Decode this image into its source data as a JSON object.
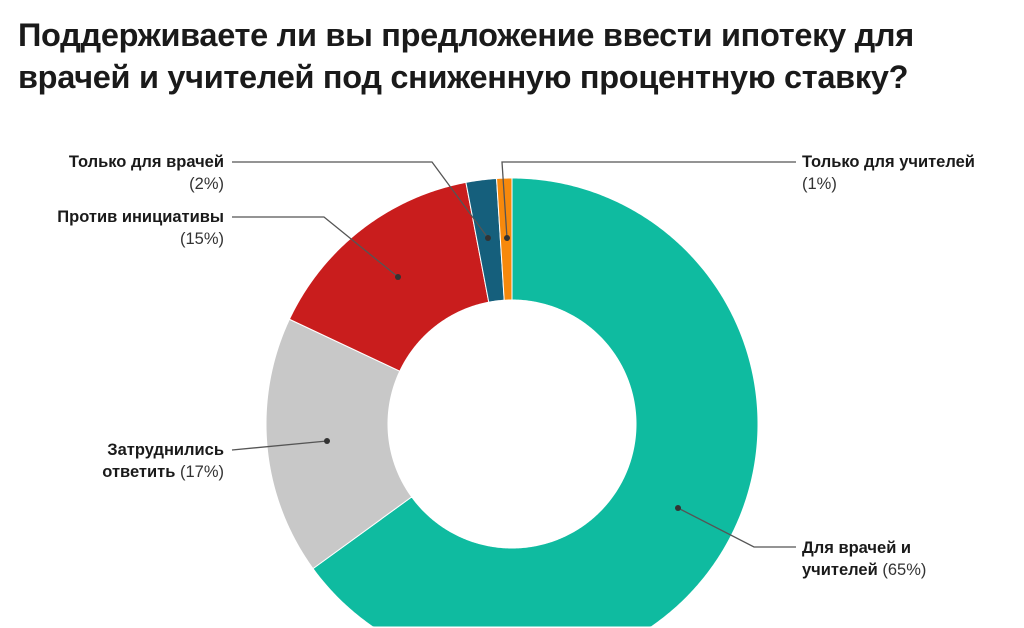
{
  "chart_data": {
    "type": "pie",
    "donut": true,
    "title": "Поддерживаете ли вы предложение ввести ипотеку для врачей и учителей под сниженную процентную ставку?",
    "slices": [
      {
        "label": "Для врачей и учителей",
        "value": 65,
        "pct_label": "(65%)",
        "color": "#0fbba0"
      },
      {
        "label": "Затруднились ответить",
        "value": 17,
        "pct_label": "(17%)",
        "color": "#c8c8c8"
      },
      {
        "label": "Против инициативы",
        "value": 15,
        "pct_label": "(15%)",
        "color": "#c91d1d"
      },
      {
        "label": "Только для врачей",
        "value": 2,
        "pct_label": "(2%)",
        "color": "#155f7c"
      },
      {
        "label": "Только для учителей",
        "value": 1,
        "pct_label": "(1%)",
        "color": "#f7890c"
      }
    ],
    "legend": "callout-labels"
  }
}
